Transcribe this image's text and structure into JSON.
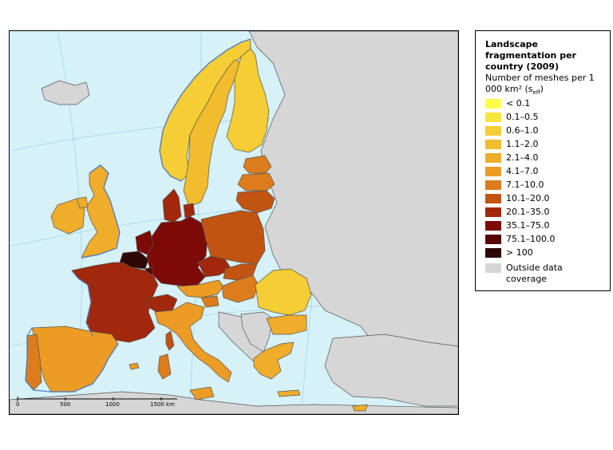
{
  "legend": {
    "title": "Landscape fragmentation per country (2009)",
    "subtitle_main": "Number of meshes per 1 000 km² (s",
    "subtitle_sub": "eff",
    "subtitle_end": ")",
    "items": [
      {
        "label": "< 0.1",
        "color": "#ffff4c"
      },
      {
        "label": "0.1–0.5",
        "color": "#f7e43c"
      },
      {
        "label": "0.6–1.0",
        "color": "#f5cd34"
      },
      {
        "label": "1.1–2.0",
        "color": "#f2bc2f"
      },
      {
        "label": "2.1–4.0",
        "color": "#efad2b"
      },
      {
        "label": "4.1–7.0",
        "color": "#ec9c24"
      },
      {
        "label": "7.1–10.0",
        "color": "#dc7c1c"
      },
      {
        "label": "10.1–20.0",
        "color": "#c25412"
      },
      {
        "label": "20.1–35.0",
        "color": "#a1280c"
      },
      {
        "label": "35.1–75.0",
        "color": "#7c0a06"
      },
      {
        "label": "75.1–100.0",
        "color": "#540804"
      },
      {
        "label": "> 100",
        "color": "#2e0604"
      },
      {
        "label": "Outside data coverage",
        "color": "#d6d6d6"
      }
    ]
  },
  "scale_bar": {
    "ticks": [
      "0",
      "500",
      "1000",
      "1500 km"
    ]
  },
  "colors": {
    "sea": "#d6f1f8",
    "outside": "#d6d6d6",
    "border": "#555555",
    "coast": "#4a78c8"
  }
}
